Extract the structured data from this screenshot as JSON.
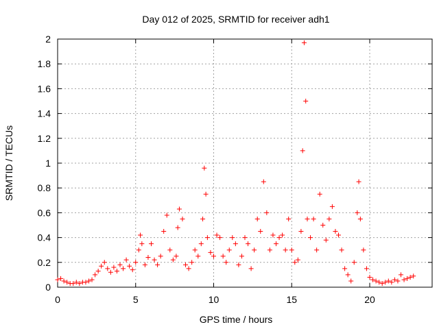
{
  "chart_data": {
    "type": "scatter",
    "title": "Day 012 of 2025, SRMTID for receiver adh1",
    "xlabel": "GPS time / hours",
    "ylabel": "SRMTID / TECUs",
    "xlim": [
      0,
      24
    ],
    "ylim": [
      0,
      2
    ],
    "xticks": [
      0,
      5,
      10,
      15,
      20
    ],
    "xtick_labels": [
      "0",
      "5",
      "10",
      "15",
      "20"
    ],
    "yticks": [
      0,
      0.2,
      0.4,
      0.6,
      0.8,
      1,
      1.2,
      1.4,
      1.6,
      1.8,
      2
    ],
    "ytick_labels": [
      "0",
      "0.2",
      "0.4",
      "0.6",
      "0.8",
      "1",
      "1.2",
      "1.4",
      "1.6",
      "1.8",
      "2"
    ],
    "grid": true,
    "marker": "+",
    "color": "#ff0000",
    "series": [
      {
        "name": "adh1",
        "x": [
          0.0,
          0.2,
          0.4,
          0.6,
          0.8,
          1.0,
          1.2,
          1.4,
          1.6,
          1.8,
          2.0,
          2.2,
          2.4,
          2.6,
          2.8,
          3.0,
          3.2,
          3.4,
          3.6,
          3.8,
          4.0,
          4.2,
          4.4,
          4.6,
          4.8,
          5.0,
          5.2,
          5.3,
          5.4,
          5.6,
          5.8,
          6.0,
          6.2,
          6.4,
          6.6,
          6.8,
          7.0,
          7.2,
          7.4,
          7.6,
          7.7,
          7.8,
          8.0,
          8.2,
          8.4,
          8.6,
          8.8,
          9.0,
          9.2,
          9.3,
          9.4,
          9.5,
          9.6,
          9.8,
          10.0,
          10.2,
          10.4,
          10.6,
          10.8,
          11.0,
          11.2,
          11.4,
          11.6,
          11.8,
          12.0,
          12.2,
          12.4,
          12.6,
          12.8,
          13.0,
          13.2,
          13.4,
          13.6,
          13.8,
          14.0,
          14.2,
          14.4,
          14.6,
          14.8,
          15.0,
          15.2,
          15.4,
          15.6,
          15.7,
          15.8,
          15.9,
          16.0,
          16.2,
          16.4,
          16.6,
          16.8,
          17.0,
          17.2,
          17.4,
          17.6,
          17.8,
          18.0,
          18.2,
          18.4,
          18.6,
          18.8,
          19.0,
          19.2,
          19.3,
          19.4,
          19.6,
          19.8,
          20.0,
          20.2,
          20.4,
          20.6,
          20.8,
          21.0,
          21.2,
          21.4,
          21.6,
          21.8,
          22.0,
          22.2,
          22.4,
          22.6,
          22.8
        ],
        "y": [
          0.06,
          0.07,
          0.05,
          0.04,
          0.03,
          0.03,
          0.04,
          0.03,
          0.04,
          0.04,
          0.05,
          0.06,
          0.1,
          0.13,
          0.17,
          0.2,
          0.15,
          0.12,
          0.16,
          0.13,
          0.18,
          0.15,
          0.22,
          0.17,
          0.14,
          0.2,
          0.3,
          0.42,
          0.35,
          0.18,
          0.24,
          0.35,
          0.22,
          0.18,
          0.25,
          0.45,
          0.58,
          0.3,
          0.22,
          0.25,
          0.48,
          0.63,
          0.55,
          0.18,
          0.15,
          0.2,
          0.3,
          0.25,
          0.35,
          0.55,
          0.96,
          0.75,
          0.4,
          0.28,
          0.25,
          0.42,
          0.4,
          0.25,
          0.2,
          0.3,
          0.4,
          0.35,
          0.18,
          0.25,
          0.4,
          0.35,
          0.15,
          0.3,
          0.55,
          0.45,
          0.85,
          0.6,
          0.3,
          0.42,
          0.35,
          0.4,
          0.42,
          0.3,
          0.55,
          0.3,
          0.2,
          0.22,
          0.45,
          1.1,
          1.97,
          1.5,
          0.55,
          0.4,
          0.55,
          0.3,
          0.75,
          0.5,
          0.38,
          0.55,
          0.65,
          0.45,
          0.42,
          0.3,
          0.15,
          0.1,
          0.05,
          0.2,
          0.6,
          0.85,
          0.55,
          0.3,
          0.15,
          0.08,
          0.06,
          0.05,
          0.04,
          0.03,
          0.04,
          0.05,
          0.04,
          0.06,
          0.05,
          0.1,
          0.06,
          0.07,
          0.08,
          0.09
        ]
      }
    ]
  }
}
